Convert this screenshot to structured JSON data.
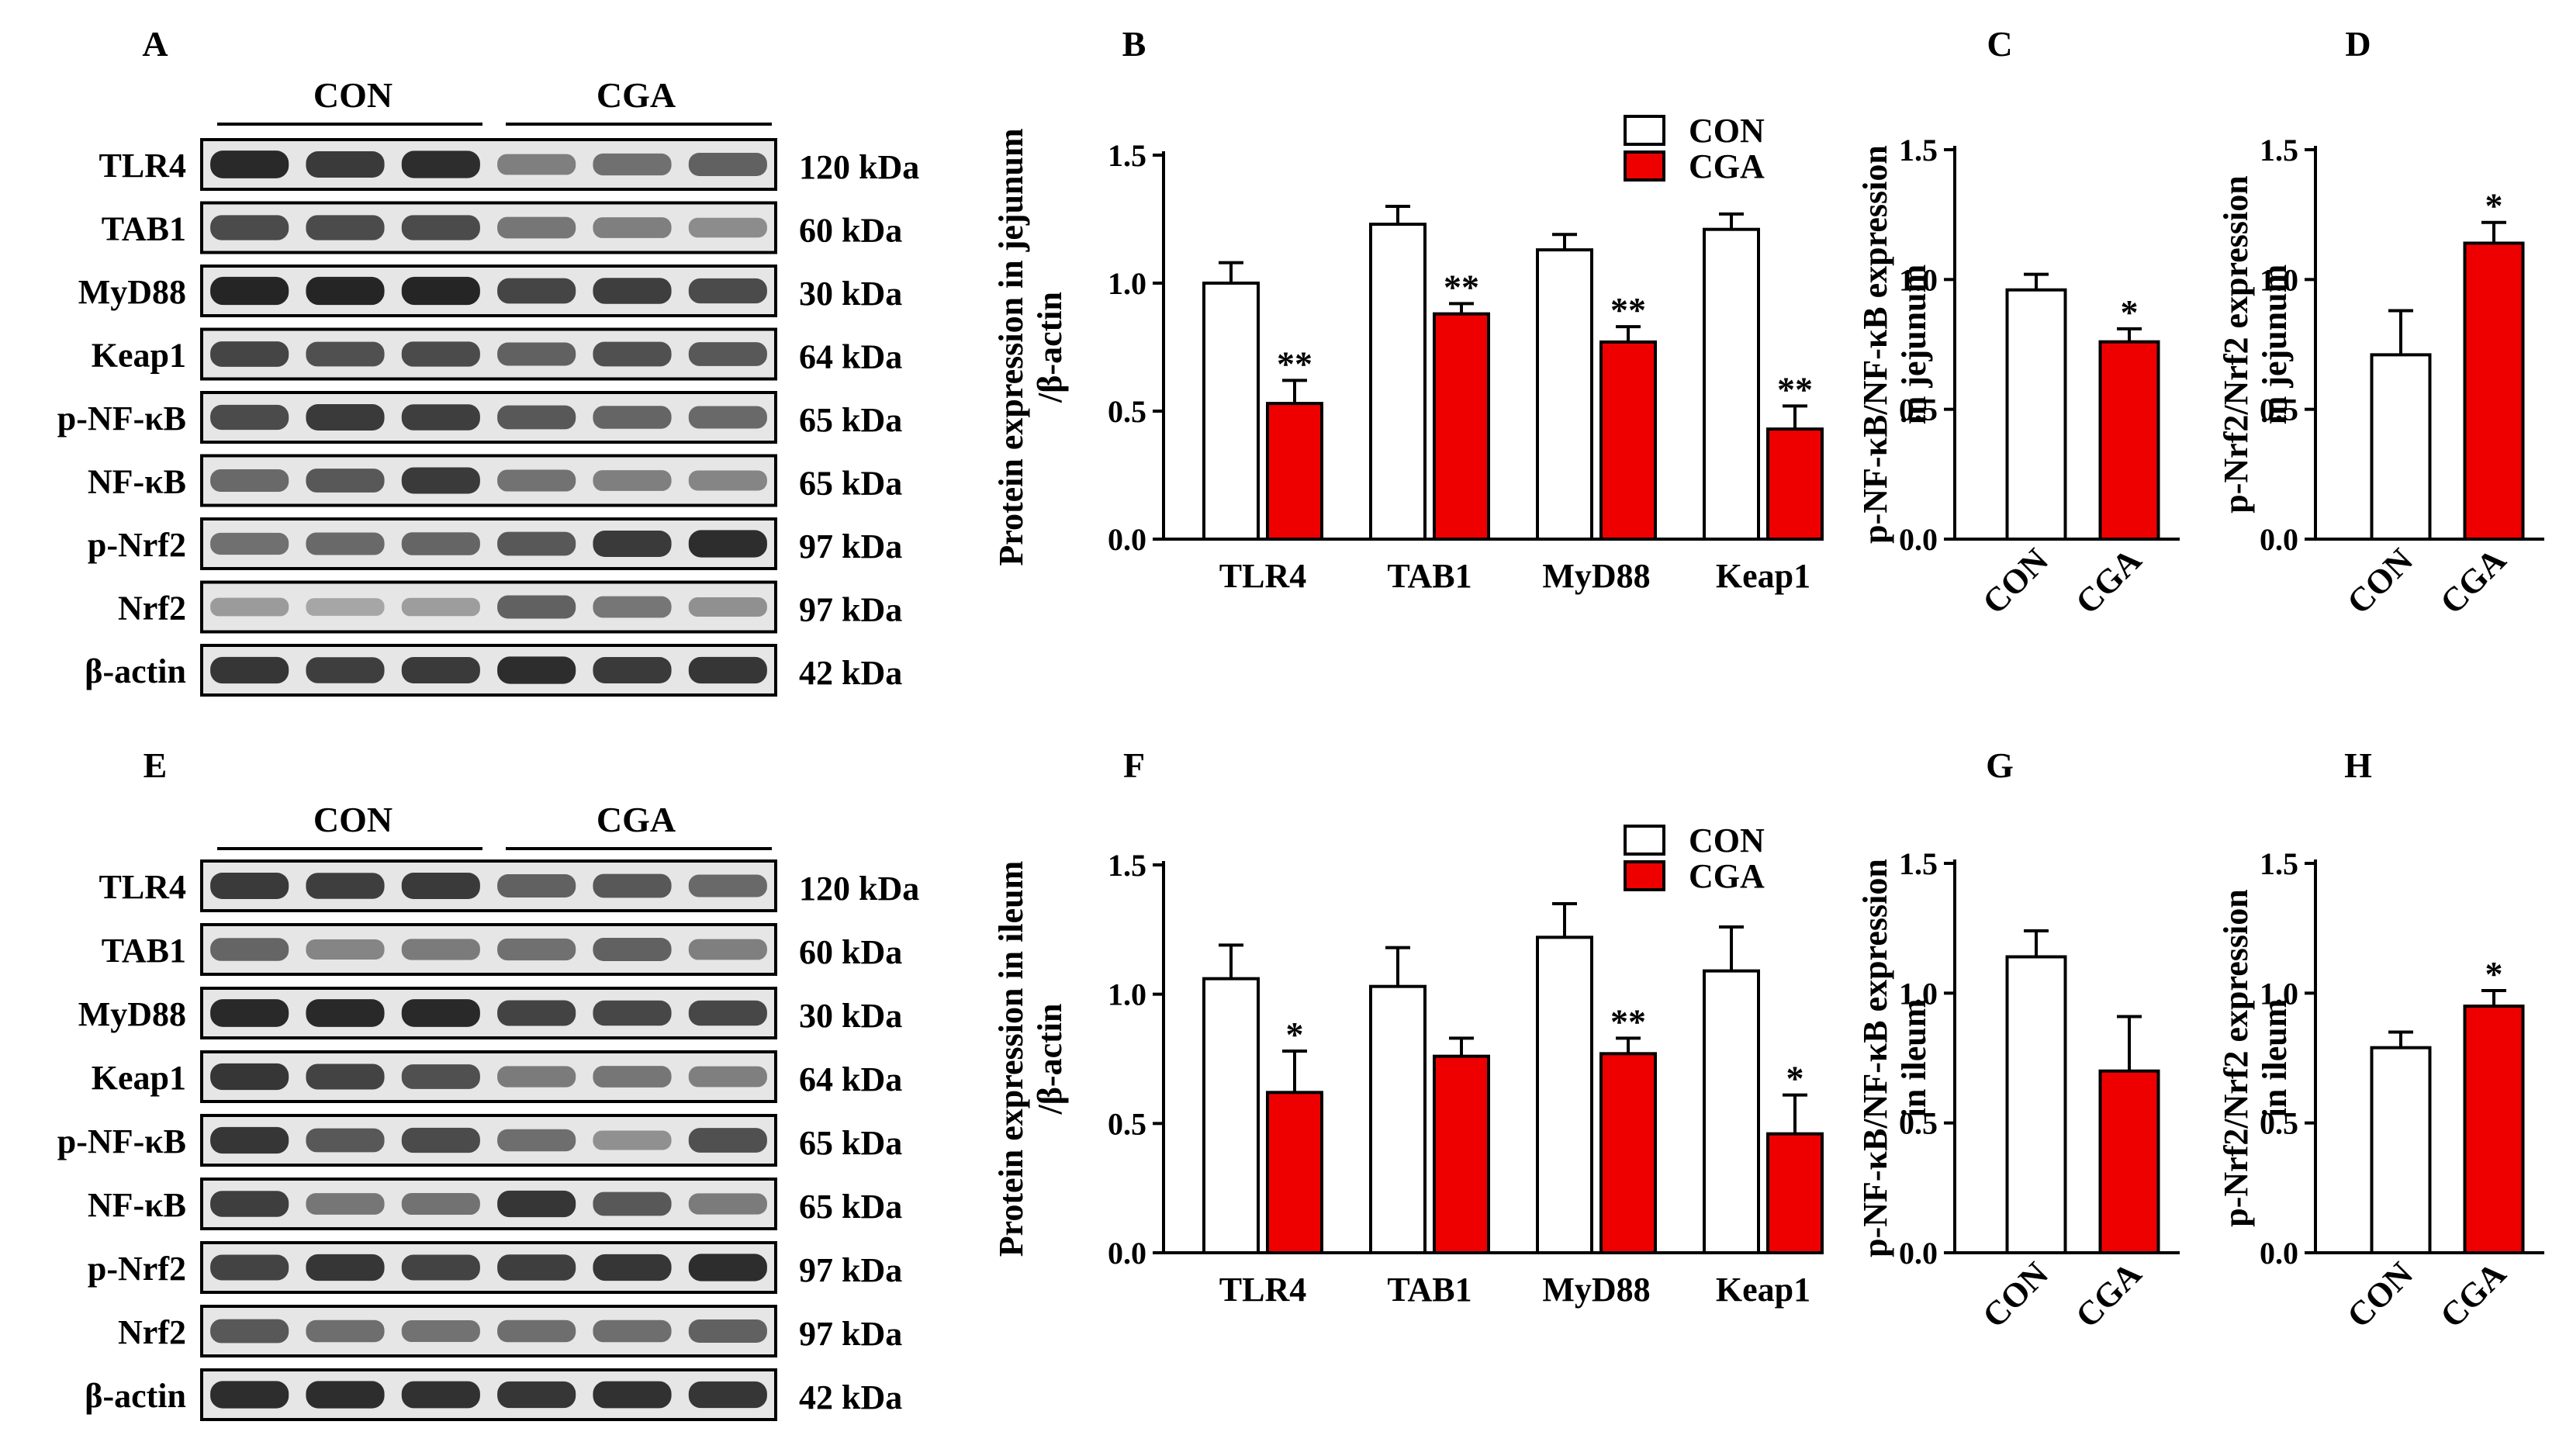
{
  "colors": {
    "con": "#ffffff",
    "cga": "#ee0000",
    "axis": "#000000",
    "blot_dark": "#141414",
    "blot_bg": "#e6e6e6"
  },
  "groups": [
    "CON",
    "CGA"
  ],
  "blot_rows": [
    {
      "protein": "TLR4",
      "size": "120 kDa"
    },
    {
      "protein": "TAB1",
      "size": "60 kDa"
    },
    {
      "protein": "MyD88",
      "size": "30 kDa"
    },
    {
      "protein": "Keap1",
      "size": "64 kDa"
    },
    {
      "protein": "p-NF-κB",
      "size": "65 kDa"
    },
    {
      "protein": "NF-κB",
      "size": "65 kDa"
    },
    {
      "protein": "p-Nrf2",
      "size": "97 kDa"
    },
    {
      "protein": "Nrf2",
      "size": "97 kDa"
    },
    {
      "protein": "β-actin",
      "size": "42 kDa"
    }
  ],
  "blots": [
    {
      "panel": "A",
      "tissue": "jejunum",
      "intensities": [
        [
          0.88,
          0.8,
          0.86,
          0.48,
          0.55,
          0.62
        ],
        [
          0.72,
          0.72,
          0.72,
          0.52,
          0.48,
          0.42
        ],
        [
          0.9,
          0.9,
          0.9,
          0.75,
          0.78,
          0.72
        ],
        [
          0.75,
          0.7,
          0.72,
          0.62,
          0.7,
          0.66
        ],
        [
          0.72,
          0.8,
          0.78,
          0.66,
          0.6,
          0.58
        ],
        [
          0.58,
          0.66,
          0.8,
          0.54,
          0.48,
          0.45
        ],
        [
          0.55,
          0.58,
          0.6,
          0.66,
          0.8,
          0.86
        ],
        [
          0.35,
          0.3,
          0.34,
          0.62,
          0.52,
          0.4
        ],
        [
          0.82,
          0.78,
          0.8,
          0.86,
          0.8,
          0.82
        ]
      ]
    },
    {
      "panel": "E",
      "tissue": "ileum",
      "intensities": [
        [
          0.8,
          0.78,
          0.8,
          0.62,
          0.66,
          0.58
        ],
        [
          0.6,
          0.45,
          0.5,
          0.55,
          0.62,
          0.48
        ],
        [
          0.88,
          0.88,
          0.88,
          0.76,
          0.74,
          0.74
        ],
        [
          0.82,
          0.76,
          0.7,
          0.5,
          0.52,
          0.48
        ],
        [
          0.82,
          0.66,
          0.72,
          0.56,
          0.4,
          0.7
        ],
        [
          0.78,
          0.52,
          0.54,
          0.82,
          0.66,
          0.5
        ],
        [
          0.76,
          0.82,
          0.76,
          0.78,
          0.82,
          0.86
        ],
        [
          0.66,
          0.56,
          0.54,
          0.56,
          0.56,
          0.62
        ],
        [
          0.86,
          0.86,
          0.84,
          0.82,
          0.84,
          0.82
        ]
      ]
    }
  ],
  "chart_data": [
    {
      "panel": "B",
      "type": "bar",
      "title": "",
      "categories": [
        "TLR4",
        "TAB1",
        "MyD88",
        "Keap1"
      ],
      "ylabel": [
        "Protein expression in jejunum",
        "/β-actin"
      ],
      "xlabel": "",
      "ylim": [
        0,
        1.5
      ],
      "yticks": [
        "0.0",
        "0.5",
        "1.0",
        "1.5"
      ],
      "legend": {
        "position": "top-right",
        "entries": [
          "CON",
          "CGA"
        ]
      },
      "series": [
        {
          "name": "CON",
          "values": [
            1.0,
            1.23,
            1.13,
            1.21
          ],
          "errors": [
            0.08,
            0.07,
            0.06,
            0.06
          ],
          "sig": [
            "",
            "",
            "",
            ""
          ]
        },
        {
          "name": "CGA",
          "values": [
            0.53,
            0.88,
            0.77,
            0.43
          ],
          "errors": [
            0.09,
            0.04,
            0.06,
            0.09
          ],
          "sig": [
            "**",
            "**",
            "**",
            "**"
          ]
        }
      ]
    },
    {
      "panel": "C",
      "type": "bar",
      "title": "",
      "categories": [
        "CON",
        "CGA"
      ],
      "ylabel": [
        "p-NF-κB/NF-κB expression",
        "in jejunum"
      ],
      "xlabel": "",
      "ylim": [
        0,
        1.5
      ],
      "yticks": [
        "0.0",
        "0.5",
        "1.0",
        "1.5"
      ],
      "values": [
        0.96,
        0.76
      ],
      "errors": [
        0.06,
        0.05
      ],
      "sig": [
        "",
        "*"
      ]
    },
    {
      "panel": "D",
      "type": "bar",
      "title": "",
      "categories": [
        "CON",
        "CGA"
      ],
      "ylabel": [
        "p-Nrf2/Nrf2 expression",
        "in jejunum"
      ],
      "xlabel": "",
      "ylim": [
        0,
        1.5
      ],
      "yticks": [
        "0.0",
        "0.5",
        "1.0",
        "1.5"
      ],
      "values": [
        0.71,
        1.14
      ],
      "errors": [
        0.17,
        0.08
      ],
      "sig": [
        "",
        "*"
      ]
    },
    {
      "panel": "F",
      "type": "bar",
      "title": "",
      "categories": [
        "TLR4",
        "TAB1",
        "MyD88",
        "Keap1"
      ],
      "ylabel": [
        "Protein expression in ileum",
        "/β-actin"
      ],
      "xlabel": "",
      "ylim": [
        0,
        1.5
      ],
      "yticks": [
        "0.0",
        "0.5",
        "1.0",
        "1.5"
      ],
      "legend": {
        "position": "top-right",
        "entries": [
          "CON",
          "CGA"
        ]
      },
      "series": [
        {
          "name": "CON",
          "values": [
            1.06,
            1.03,
            1.22,
            1.09
          ],
          "errors": [
            0.13,
            0.15,
            0.13,
            0.17
          ],
          "sig": [
            "",
            "",
            "",
            ""
          ]
        },
        {
          "name": "CGA",
          "values": [
            0.62,
            0.76,
            0.77,
            0.46
          ],
          "errors": [
            0.16,
            0.07,
            0.06,
            0.15
          ],
          "sig": [
            "*",
            "",
            "**",
            "*"
          ]
        }
      ]
    },
    {
      "panel": "G",
      "type": "bar",
      "title": "",
      "categories": [
        "CON",
        "CGA"
      ],
      "ylabel": [
        "p-NF-κB/NF-κB expression",
        "in ileum"
      ],
      "xlabel": "",
      "ylim": [
        0,
        1.5
      ],
      "yticks": [
        "0.0",
        "0.5",
        "1.0",
        "1.5"
      ],
      "values": [
        1.14,
        0.7
      ],
      "errors": [
        0.1,
        0.21
      ],
      "sig": [
        "",
        ""
      ]
    },
    {
      "panel": "H",
      "type": "bar",
      "title": "",
      "categories": [
        "CON",
        "CGA"
      ],
      "ylabel": [
        "p-Nrf2/Nrf2 expression",
        "in ileum"
      ],
      "xlabel": "",
      "ylim": [
        0,
        1.5
      ],
      "yticks": [
        "0.0",
        "0.5",
        "1.0",
        "1.5"
      ],
      "values": [
        0.79,
        0.95
      ],
      "errors": [
        0.06,
        0.06
      ],
      "sig": [
        "",
        "*"
      ]
    }
  ]
}
